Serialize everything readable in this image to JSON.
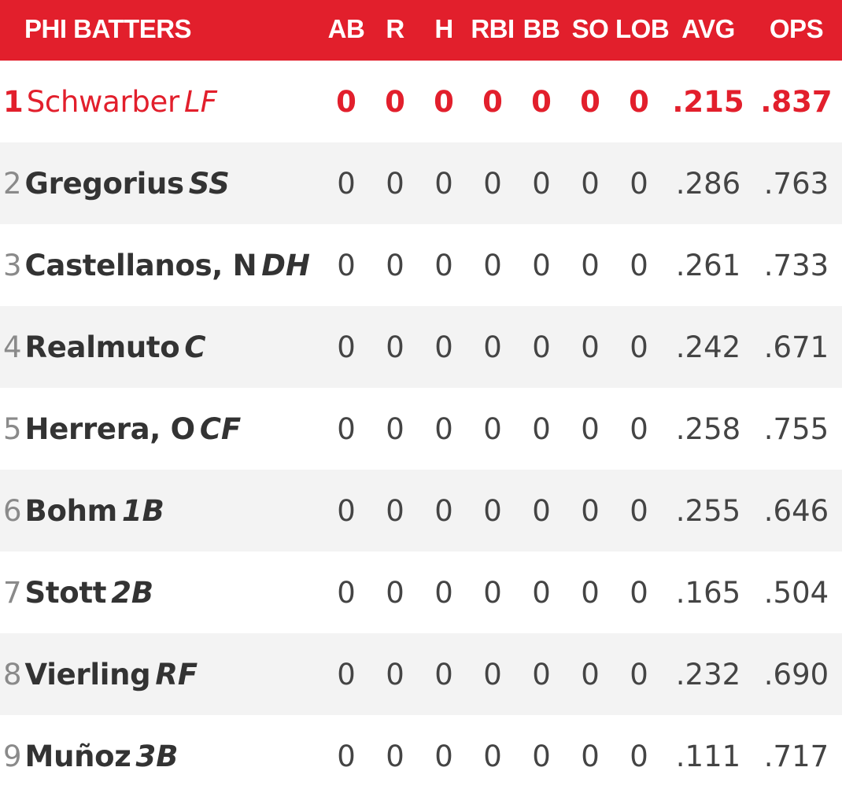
{
  "header": {
    "title": "PHI BATTERS",
    "columns": [
      "AB",
      "R",
      "H",
      "RBI",
      "BB",
      "SO",
      "LOB",
      "AVG",
      "OPS"
    ]
  },
  "colors": {
    "accent": "#e21f2c",
    "row_alt": "#f3f3f3",
    "text": "#333333",
    "order_text": "#8a8a8a"
  },
  "batters": [
    {
      "order": "1",
      "name": "Schwarber",
      "pos": "LF",
      "ab": "0",
      "r": "0",
      "h": "0",
      "rbi": "0",
      "bb": "0",
      "so": "0",
      "lob": "0",
      "avg": ".215",
      "ops": ".837"
    },
    {
      "order": "2",
      "name": "Gregorius",
      "pos": "SS",
      "ab": "0",
      "r": "0",
      "h": "0",
      "rbi": "0",
      "bb": "0",
      "so": "0",
      "lob": "0",
      "avg": ".286",
      "ops": ".763"
    },
    {
      "order": "3",
      "name": "Castellanos, N",
      "pos": "DH",
      "ab": "0",
      "r": "0",
      "h": "0",
      "rbi": "0",
      "bb": "0",
      "so": "0",
      "lob": "0",
      "avg": ".261",
      "ops": ".733"
    },
    {
      "order": "4",
      "name": "Realmuto",
      "pos": "C",
      "ab": "0",
      "r": "0",
      "h": "0",
      "rbi": "0",
      "bb": "0",
      "so": "0",
      "lob": "0",
      "avg": ".242",
      "ops": ".671"
    },
    {
      "order": "5",
      "name": "Herrera, O",
      "pos": "CF",
      "ab": "0",
      "r": "0",
      "h": "0",
      "rbi": "0",
      "bb": "0",
      "so": "0",
      "lob": "0",
      "avg": ".258",
      "ops": ".755"
    },
    {
      "order": "6",
      "name": "Bohm",
      "pos": "1B",
      "ab": "0",
      "r": "0",
      "h": "0",
      "rbi": "0",
      "bb": "0",
      "so": "0",
      "lob": "0",
      "avg": ".255",
      "ops": ".646"
    },
    {
      "order": "7",
      "name": "Stott",
      "pos": "2B",
      "ab": "0",
      "r": "0",
      "h": "0",
      "rbi": "0",
      "bb": "0",
      "so": "0",
      "lob": "0",
      "avg": ".165",
      "ops": ".504"
    },
    {
      "order": "8",
      "name": "Vierling",
      "pos": "RF",
      "ab": "0",
      "r": "0",
      "h": "0",
      "rbi": "0",
      "bb": "0",
      "so": "0",
      "lob": "0",
      "avg": ".232",
      "ops": ".690"
    },
    {
      "order": "9",
      "name": "Muñoz",
      "pos": "3B",
      "ab": "0",
      "r": "0",
      "h": "0",
      "rbi": "0",
      "bb": "0",
      "so": "0",
      "lob": "0",
      "avg": ".111",
      "ops": ".717"
    }
  ]
}
